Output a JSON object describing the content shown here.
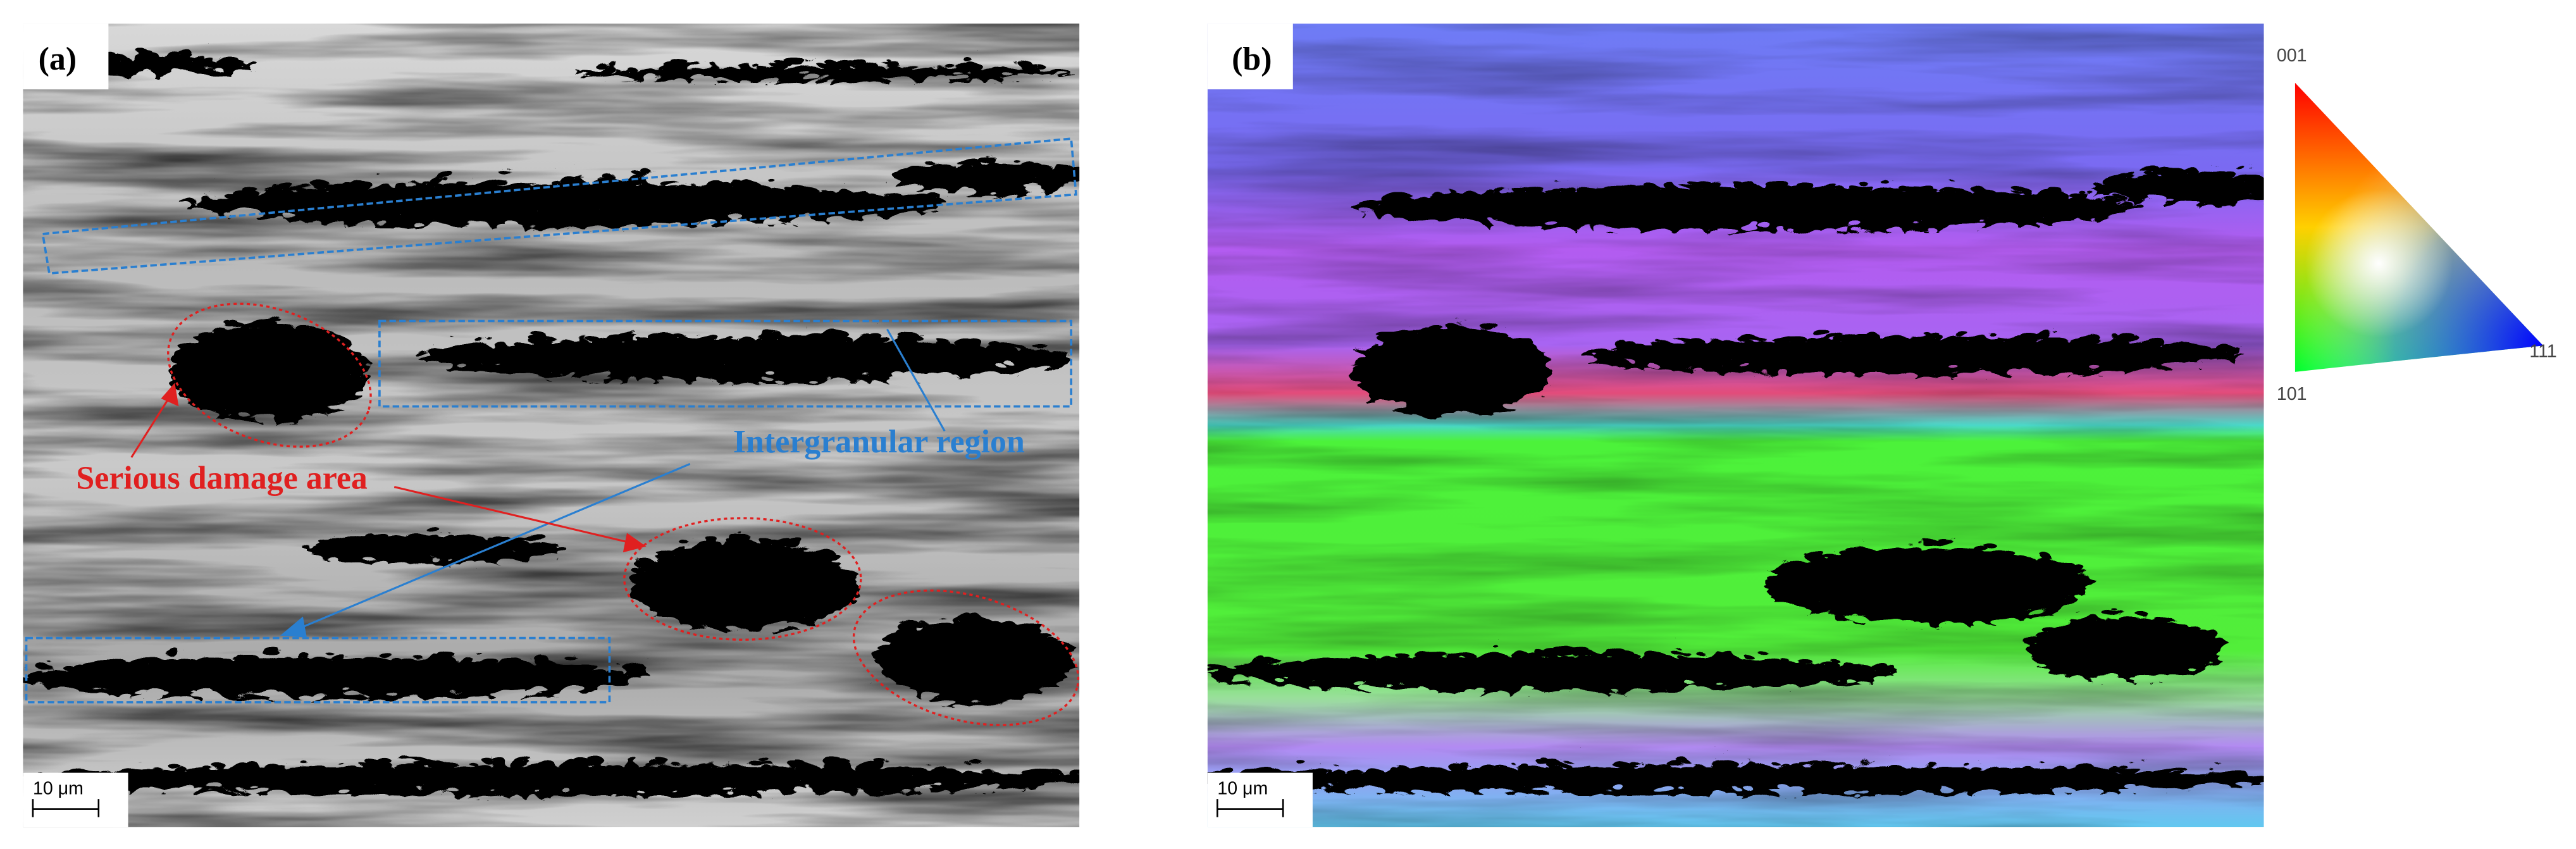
{
  "figure": {
    "panels": [
      {
        "label": "(a)",
        "scale_bar": "10 μm",
        "annotations": {
          "intergranular": "Intergranular region",
          "damage": "Serious damage area"
        }
      },
      {
        "label": "(b)",
        "scale_bar": "10 μm",
        "legend": {
          "top": "001",
          "bottom_left": "101",
          "right": "111"
        }
      }
    ]
  }
}
